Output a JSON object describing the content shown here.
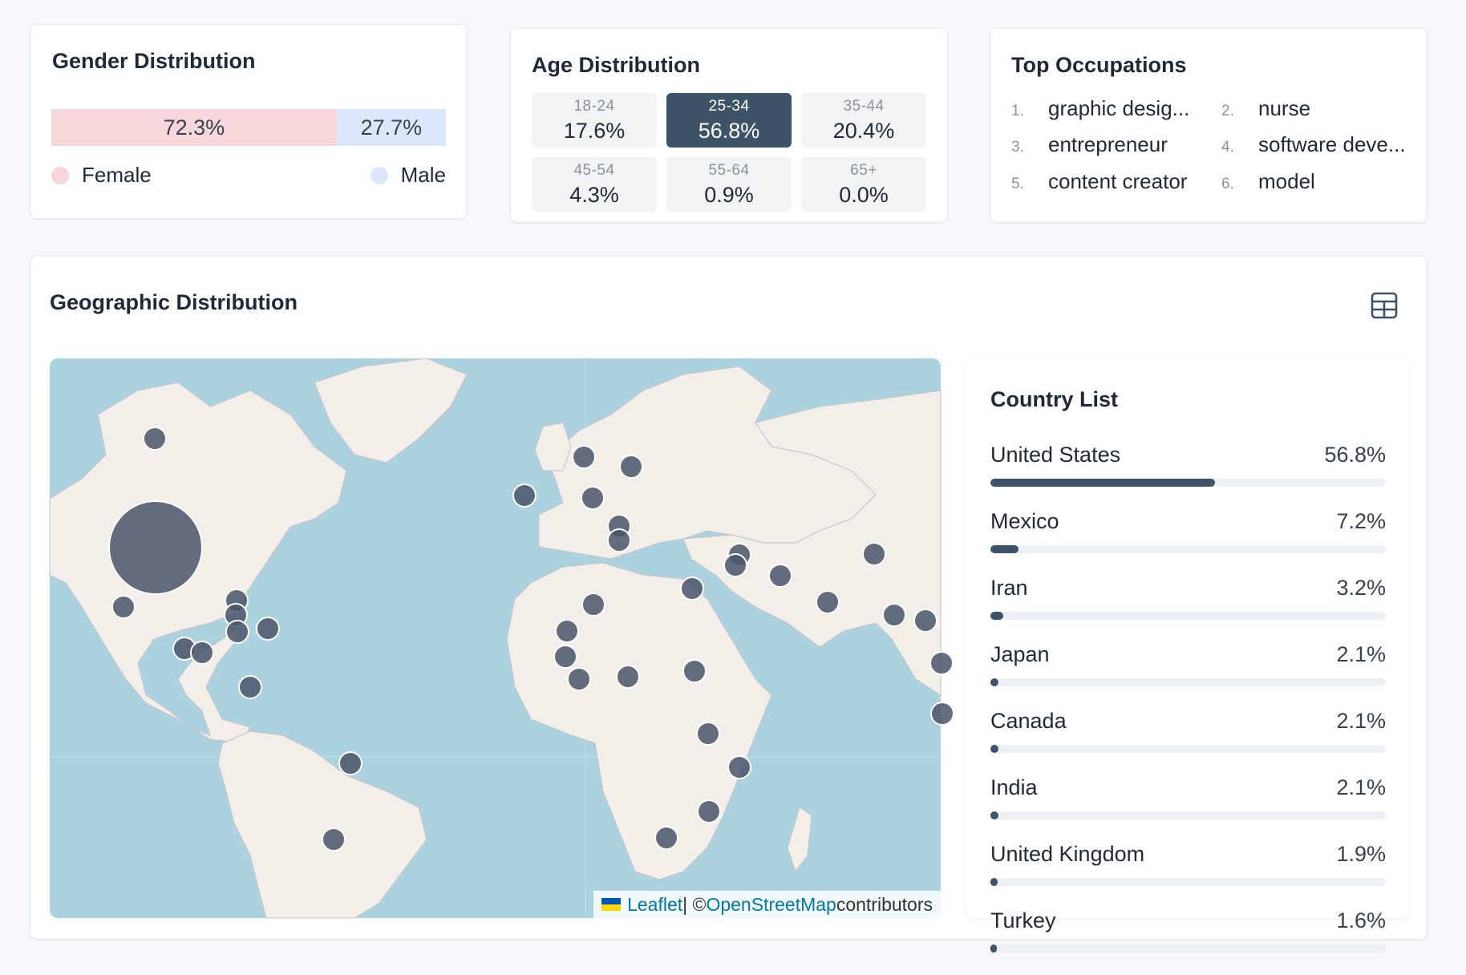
{
  "gender": {
    "title": "Gender Distribution",
    "female_pct": "72.3%",
    "male_pct": "27.7%",
    "female_fraction": 0.723,
    "male_fraction": 0.277,
    "female_label": "Female",
    "male_label": "Male",
    "female_color": "#f8d7da",
    "male_color": "#dbe7fb"
  },
  "age": {
    "title": "Age Distribution",
    "brackets": [
      {
        "range": "18-24",
        "pct": "17.6%"
      },
      {
        "range": "25-34",
        "pct": "56.8%"
      },
      {
        "range": "35-44",
        "pct": "20.4%"
      },
      {
        "range": "45-54",
        "pct": "4.3%"
      },
      {
        "range": "55-64",
        "pct": "0.9%"
      },
      {
        "range": "65+",
        "pct": "0.0%"
      }
    ],
    "active_color": "#3d5368"
  },
  "occupations": {
    "title": "Top Occupations",
    "items": [
      {
        "num": "1.",
        "label": "graphic desig..."
      },
      {
        "num": "2.",
        "label": "nurse"
      },
      {
        "num": "3.",
        "label": "entrepreneur"
      },
      {
        "num": "4.",
        "label": "software deve..."
      },
      {
        "num": "5.",
        "label": "content creator"
      },
      {
        "num": "6.",
        "label": "model"
      }
    ]
  },
  "geo": {
    "title": "Geographic Distribution",
    "table_icon": "table-grid-icon",
    "map": {
      "ocean_color": "#aad3df",
      "land_color": "#f2efe9",
      "marker_color": "#4a5568"
    },
    "attribution": {
      "leaflet": "Leaflet",
      "separator": " | © ",
      "osm": "OpenStreetMap",
      "contributors": " contributors"
    },
    "country_list": {
      "title": "Country List",
      "countries": [
        {
          "name": "United States",
          "pct": "56.8%",
          "value": 56.8
        },
        {
          "name": "Mexico",
          "pct": "7.2%",
          "value": 7.2
        },
        {
          "name": "Iran",
          "pct": "3.2%",
          "value": 3.2
        },
        {
          "name": "Japan",
          "pct": "2.1%",
          "value": 2.1
        },
        {
          "name": "Canada",
          "pct": "2.1%",
          "value": 2.1
        },
        {
          "name": "India",
          "pct": "2.1%",
          "value": 2.1
        },
        {
          "name": "United Kingdom",
          "pct": "1.9%",
          "value": 1.9
        },
        {
          "name": "Turkey",
          "pct": "1.6%",
          "value": 1.6
        }
      ]
    }
  }
}
